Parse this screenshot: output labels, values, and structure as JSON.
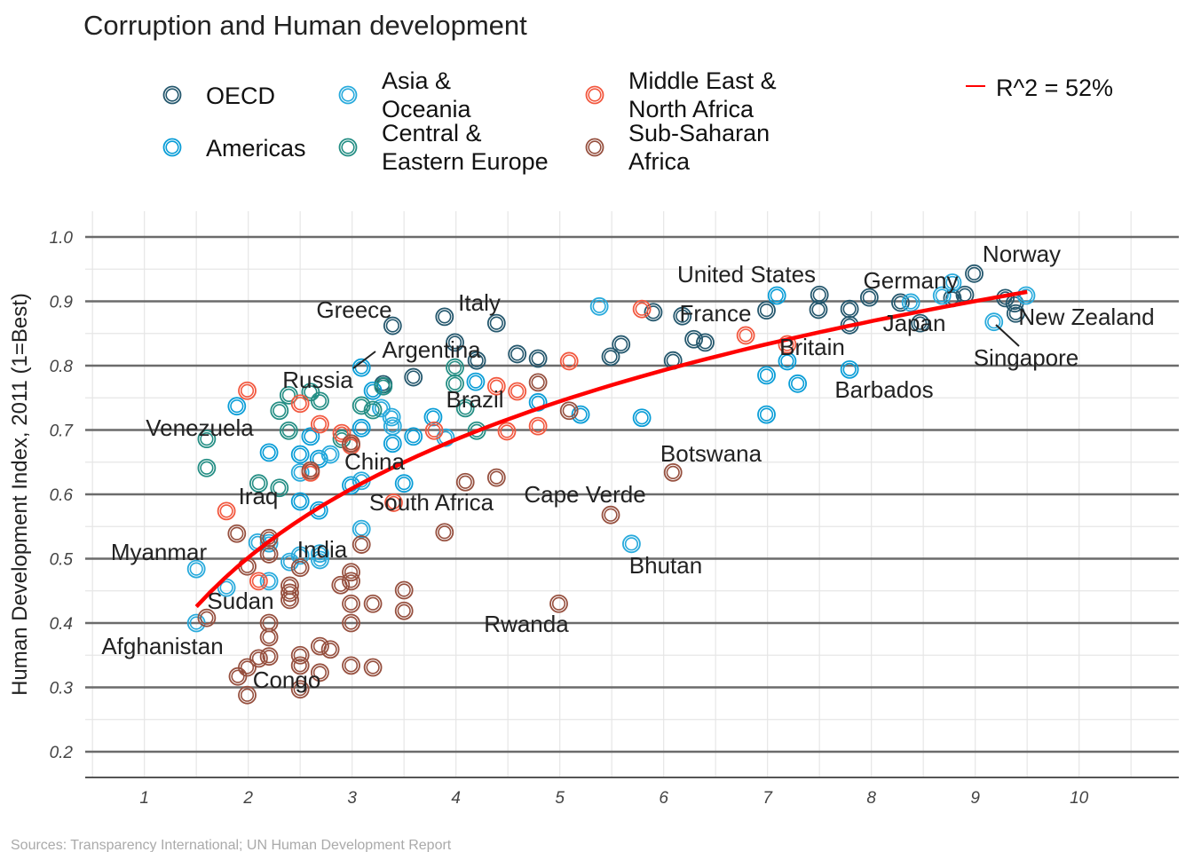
{
  "chart_data": {
    "type": "scatter",
    "title": "Corruption and Human development",
    "xlabel": "",
    "ylabel": "Human Development Index, 2011 (1=Best)",
    "source": "Sources: Transparency International; UN Human Development Report",
    "xlim": [
      0.43,
      10.96
    ],
    "ylim": [
      0.16,
      1.04
    ],
    "xticks": [
      "1",
      "2",
      "3",
      "4",
      "5",
      "6",
      "7",
      "8",
      "9",
      "10"
    ],
    "yticks": [
      "0.2",
      "0.3",
      "0.4",
      "0.5",
      "0.6",
      "0.7",
      "0.8",
      "0.9",
      "1.0"
    ],
    "grid": true,
    "legend_position": "top",
    "regions": [
      {
        "key": "OECD",
        "label": "OECD",
        "color": "#24576D"
      },
      {
        "key": "AM",
        "label": "Americas",
        "color": "#099DD7"
      },
      {
        "key": "AS",
        "label": "Asia & Oceania",
        "color": "#28AADC"
      },
      {
        "key": "CE",
        "label": "Central & Eastern Europe",
        "color": "#248E84"
      },
      {
        "key": "ME",
        "label": "Middle East & North Africa",
        "color": "#F2583F"
      },
      {
        "key": "SSA",
        "label": "Sub-Saharan Africa",
        "color": "#96503F"
      }
    ],
    "legend_lines": [
      [
        "OECD"
      ],
      [
        "Americas"
      ],
      [
        "Asia &",
        "Oceania"
      ],
      [
        "Central &",
        "Eastern Europe"
      ],
      [
        "Middle East &",
        "North Africa"
      ],
      [
        "Sub-Saharan",
        "Africa"
      ]
    ],
    "trend": {
      "label": "R^2 = 52%",
      "color": "#FF0000",
      "model": "y = a + b*ln(x)",
      "a": 0.318,
      "b": 0.265,
      "x_range": [
        1.5,
        9.5
      ]
    },
    "points": [
      [
        3.39,
        0.862,
        "OECD"
      ],
      [
        3.89,
        0.876,
        "OECD"
      ],
      [
        4.39,
        0.866,
        "OECD"
      ],
      [
        3.99,
        0.836,
        "OECD"
      ],
      [
        4.2,
        0.808,
        "OECD"
      ],
      [
        4.59,
        0.818,
        "OECD"
      ],
      [
        4.79,
        0.811,
        "OECD"
      ],
      [
        3.59,
        0.782,
        "OECD"
      ],
      [
        5.49,
        0.814,
        "OECD"
      ],
      [
        5.59,
        0.833,
        "OECD"
      ],
      [
        5.9,
        0.883,
        "OECD"
      ],
      [
        6.09,
        0.808,
        "OECD"
      ],
      [
        6.18,
        0.877,
        "OECD"
      ],
      [
        6.29,
        0.841,
        "OECD"
      ],
      [
        6.4,
        0.836,
        "OECD"
      ],
      [
        6.99,
        0.886,
        "OECD"
      ],
      [
        7.5,
        0.91,
        "OECD"
      ],
      [
        7.49,
        0.887,
        "OECD"
      ],
      [
        7.79,
        0.888,
        "OECD"
      ],
      [
        7.79,
        0.863,
        "OECD"
      ],
      [
        7.98,
        0.906,
        "OECD"
      ],
      [
        8.28,
        0.898,
        "OECD"
      ],
      [
        8.47,
        0.866,
        "OECD"
      ],
      [
        8.78,
        0.905,
        "OECD"
      ],
      [
        8.9,
        0.91,
        "OECD"
      ],
      [
        8.99,
        0.943,
        "OECD"
      ],
      [
        9.29,
        0.905,
        "OECD"
      ],
      [
        9.38,
        0.897,
        "OECD"
      ],
      [
        9.39,
        0.881,
        "OECD"
      ],
      [
        3.3,
        0.771,
        "OECD"
      ],
      [
        1.89,
        0.737,
        "AM"
      ],
      [
        2.2,
        0.665,
        "AM"
      ],
      [
        2.5,
        0.662,
        "AM"
      ],
      [
        2.6,
        0.69,
        "AM"
      ],
      [
        2.68,
        0.655,
        "AM"
      ],
      [
        3.09,
        0.797,
        "AM"
      ],
      [
        3.09,
        0.703,
        "AM"
      ],
      [
        3.2,
        0.761,
        "AM"
      ],
      [
        3.39,
        0.679,
        "AM"
      ],
      [
        3.59,
        0.69,
        "AM"
      ],
      [
        3.78,
        0.72,
        "AM"
      ],
      [
        4.19,
        0.775,
        "AM"
      ],
      [
        4.79,
        0.743,
        "AM"
      ],
      [
        5.2,
        0.724,
        "AM"
      ],
      [
        5.79,
        0.719,
        "AM"
      ],
      [
        6.99,
        0.785,
        "AM"
      ],
      [
        6.99,
        0.724,
        "AM"
      ],
      [
        7.19,
        0.807,
        "AM"
      ],
      [
        7.29,
        0.772,
        "AM"
      ],
      [
        7.79,
        0.794,
        "AM"
      ],
      [
        7.09,
        0.909,
        "AM"
      ],
      [
        2.5,
        0.589,
        "AM"
      ],
      [
        2.68,
        0.575,
        "AM"
      ],
      [
        3.5,
        0.617,
        "AM"
      ],
      [
        2.99,
        0.614,
        "AM"
      ],
      [
        2.5,
        0.634,
        "AS"
      ],
      [
        2.79,
        0.662,
        "AS"
      ],
      [
        3.28,
        0.734,
        "AS"
      ],
      [
        3.38,
        0.72,
        "AS"
      ],
      [
        3.39,
        0.706,
        "AS"
      ],
      [
        3.9,
        0.688,
        "AS"
      ],
      [
        5.38,
        0.892,
        "AS"
      ],
      [
        5.69,
        0.523,
        "AS"
      ],
      [
        8.38,
        0.898,
        "AS"
      ],
      [
        8.68,
        0.909,
        "AS"
      ],
      [
        8.78,
        0.929,
        "AS"
      ],
      [
        9.18,
        0.868,
        "AS"
      ],
      [
        9.49,
        0.909,
        "AS"
      ],
      [
        1.5,
        0.4,
        "AS"
      ],
      [
        1.5,
        0.484,
        "AS"
      ],
      [
        1.79,
        0.455,
        "AS"
      ],
      [
        2.09,
        0.525,
        "AS"
      ],
      [
        2.2,
        0.465,
        "AS"
      ],
      [
        2.2,
        0.524,
        "AS"
      ],
      [
        2.4,
        0.495,
        "AS"
      ],
      [
        2.5,
        0.505,
        "AS"
      ],
      [
        2.69,
        0.508,
        "AS"
      ],
      [
        2.69,
        0.498,
        "AS"
      ],
      [
        3.09,
        0.546,
        "AS"
      ],
      [
        3.09,
        0.621,
        "AS"
      ],
      [
        1.6,
        0.686,
        "CE"
      ],
      [
        1.6,
        0.641,
        "CE"
      ],
      [
        2.1,
        0.617,
        "CE"
      ],
      [
        2.3,
        0.61,
        "CE"
      ],
      [
        2.3,
        0.73,
        "CE"
      ],
      [
        2.39,
        0.754,
        "CE"
      ],
      [
        2.39,
        0.699,
        "CE"
      ],
      [
        2.69,
        0.745,
        "CE"
      ],
      [
        2.9,
        0.686,
        "CE"
      ],
      [
        3.09,
        0.738,
        "CE"
      ],
      [
        3.2,
        0.731,
        "CE"
      ],
      [
        3.3,
        0.768,
        "CE"
      ],
      [
        3.99,
        0.797,
        "CE"
      ],
      [
        3.99,
        0.772,
        "CE"
      ],
      [
        4.09,
        0.734,
        "CE"
      ],
      [
        4.2,
        0.699,
        "CE"
      ],
      [
        2.6,
        0.759,
        "CE"
      ],
      [
        1.99,
        0.761,
        "ME"
      ],
      [
        1.79,
        0.574,
        "ME"
      ],
      [
        2.1,
        0.465,
        "ME"
      ],
      [
        2.5,
        0.741,
        "ME"
      ],
      [
        2.6,
        0.634,
        "ME"
      ],
      [
        2.69,
        0.709,
        "ME"
      ],
      [
        2.9,
        0.695,
        "ME"
      ],
      [
        2.99,
        0.676,
        "ME"
      ],
      [
        3.4,
        0.587,
        "ME"
      ],
      [
        3.79,
        0.699,
        "ME"
      ],
      [
        4.39,
        0.768,
        "ME"
      ],
      [
        4.49,
        0.698,
        "ME"
      ],
      [
        4.59,
        0.76,
        "ME"
      ],
      [
        4.79,
        0.706,
        "ME"
      ],
      [
        5.09,
        0.807,
        "ME"
      ],
      [
        5.79,
        0.888,
        "ME"
      ],
      [
        6.79,
        0.847,
        "ME"
      ],
      [
        7.19,
        0.833,
        "ME"
      ],
      [
        1.6,
        0.408,
        "SSA"
      ],
      [
        1.89,
        0.539,
        "SSA"
      ],
      [
        1.99,
        0.488,
        "SSA"
      ],
      [
        1.9,
        0.317,
        "SSA"
      ],
      [
        1.99,
        0.331,
        "SSA"
      ],
      [
        1.99,
        0.288,
        "SSA"
      ],
      [
        2.1,
        0.345,
        "SSA"
      ],
      [
        2.2,
        0.532,
        "SSA"
      ],
      [
        2.2,
        0.507,
        "SSA"
      ],
      [
        2.2,
        0.4,
        "SSA"
      ],
      [
        2.2,
        0.378,
        "SSA"
      ],
      [
        2.2,
        0.348,
        "SSA"
      ],
      [
        2.4,
        0.458,
        "SSA"
      ],
      [
        2.4,
        0.447,
        "SSA"
      ],
      [
        2.4,
        0.436,
        "SSA"
      ],
      [
        2.5,
        0.486,
        "SSA"
      ],
      [
        2.5,
        0.35,
        "SSA"
      ],
      [
        2.5,
        0.334,
        "SSA"
      ],
      [
        2.5,
        0.297,
        "SSA"
      ],
      [
        2.69,
        0.364,
        "SSA"
      ],
      [
        2.69,
        0.323,
        "SSA"
      ],
      [
        2.79,
        0.359,
        "SSA"
      ],
      [
        2.89,
        0.459,
        "SSA"
      ],
      [
        2.99,
        0.479,
        "SSA"
      ],
      [
        2.99,
        0.465,
        "SSA"
      ],
      [
        2.99,
        0.43,
        "SSA"
      ],
      [
        2.99,
        0.4,
        "SSA"
      ],
      [
        2.99,
        0.334,
        "SSA"
      ],
      [
        3.09,
        0.522,
        "SSA"
      ],
      [
        3.2,
        0.43,
        "SSA"
      ],
      [
        3.2,
        0.331,
        "SSA"
      ],
      [
        3.5,
        0.451,
        "SSA"
      ],
      [
        3.5,
        0.419,
        "SSA"
      ],
      [
        2.99,
        0.679,
        "SSA"
      ],
      [
        3.89,
        0.541,
        "SSA"
      ],
      [
        4.09,
        0.619,
        "SSA"
      ],
      [
        4.39,
        0.626,
        "SSA"
      ],
      [
        4.79,
        0.774,
        "SSA"
      ],
      [
        5.09,
        0.73,
        "SSA"
      ],
      [
        4.99,
        0.43,
        "SSA"
      ],
      [
        5.49,
        0.568,
        "SSA"
      ],
      [
        6.09,
        0.634,
        "SSA"
      ],
      [
        2.6,
        0.637,
        "SSA"
      ]
    ],
    "labels": [
      "Norway",
      "United States",
      "Germany",
      "Greece",
      "Italy",
      "France",
      "New Zealand",
      "Japan",
      "Argentina",
      "Britain",
      "Singapore",
      "Russia",
      "Barbados",
      "Brazil",
      "Venezuela",
      "Botswana",
      "China",
      "Iraq",
      "South Africa",
      "Cape Verde",
      "Myanmar",
      "India",
      "Bhutan",
      "Sudan",
      "Rwanda",
      "Afghanistan",
      "Congo"
    ]
  }
}
